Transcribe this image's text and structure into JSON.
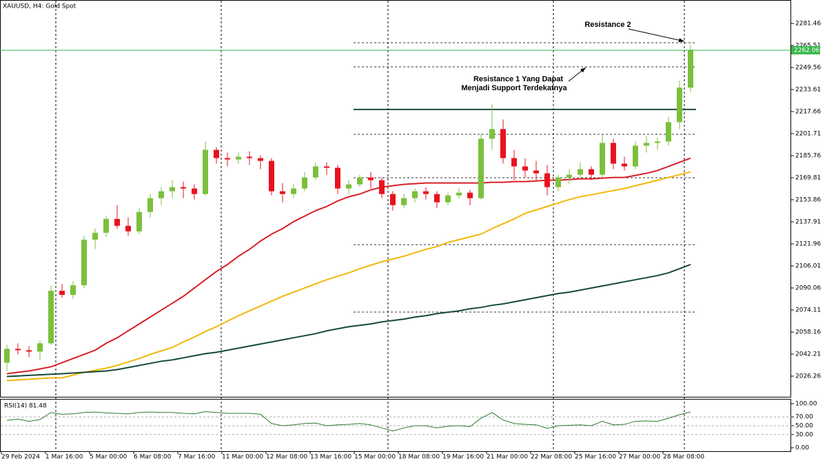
{
  "chart_data": [
    {
      "type": "candlestick",
      "title": "XAUUSD, H4:  Gold Spot",
      "categories": [
        "29 Feb 2024",
        null,
        null,
        null,
        "1 Mar 16:00",
        null,
        null,
        null,
        "5 Mar 00:00",
        null,
        null,
        null,
        "6 Mar 08:00",
        null,
        null,
        null,
        "7 Mar 16:00",
        null,
        null,
        null,
        "11 Mar 00:00",
        null,
        null,
        null,
        "12 Mar 08:00",
        null,
        null,
        null,
        "13 Mar 16:00",
        null,
        null,
        null,
        "15 Mar 00:00",
        null,
        null,
        null,
        "18 Mar 08:00",
        null,
        null,
        null,
        "19 Mar 16:00",
        null,
        null,
        null,
        "21 Mar 00:00",
        null,
        null,
        null,
        "22 Mar 08:00",
        null,
        null,
        null,
        "25 Mar 16:00",
        null,
        null,
        null,
        "27 Mar 00:00",
        null,
        null,
        null,
        "28 Mar 08:00",
        null,
        null
      ],
      "open": [
        2036,
        2046,
        2045,
        2044,
        2050,
        2088,
        2085,
        2092,
        2125,
        2130,
        2140,
        2135,
        2131,
        2145,
        2155,
        2160,
        2163,
        2162,
        2158,
        2190,
        2184,
        2183,
        2185,
        2184,
        2182,
        2160,
        2158,
        2162,
        2170,
        2178,
        2177,
        2162,
        2165,
        2170,
        2168,
        2158,
        2150,
        2155,
        2160,
        2158,
        2152,
        2157,
        2159,
        2155,
        2198,
        2205,
        2184,
        2178,
        2175,
        2173,
        2163,
        2170,
        2172,
        2176,
        2172,
        2195,
        2180,
        2178,
        2193,
        2195,
        2196,
        2210,
        2235
      ],
      "high": [
        2049,
        2050,
        2048,
        2052,
        2092,
        2093,
        2095,
        2128,
        2133,
        2142,
        2150,
        2141,
        2148,
        2158,
        2163,
        2168,
        2167,
        2165,
        2196,
        2192,
        2188,
        2188,
        2189,
        2186,
        2184,
        2166,
        2165,
        2174,
        2181,
        2181,
        2179,
        2168,
        2172,
        2174,
        2170,
        2160,
        2158,
        2162,
        2163,
        2160,
        2159,
        2162,
        2161,
        2202,
        2223,
        2212,
        2190,
        2184,
        2182,
        2179,
        2172,
        2176,
        2181,
        2178,
        2201,
        2198,
        2185,
        2196,
        2200,
        2199,
        2214,
        2240,
        2266
      ],
      "low": [
        2030,
        2042,
        2040,
        2038,
        2049,
        2083,
        2082,
        2090,
        2118,
        2127,
        2133,
        2128,
        2129,
        2141,
        2150,
        2155,
        2155,
        2154,
        2157,
        2180,
        2178,
        2180,
        2179,
        2176,
        2157,
        2152,
        2155,
        2160,
        2168,
        2172,
        2158,
        2158,
        2163,
        2162,
        2155,
        2146,
        2148,
        2152,
        2154,
        2148,
        2150,
        2155,
        2150,
        2154,
        2190,
        2180,
        2168,
        2170,
        2168,
        2157,
        2160,
        2165,
        2170,
        2168,
        2170,
        2176,
        2175,
        2176,
        2188,
        2190,
        2193,
        2205,
        2232
      ],
      "close": [
        2046,
        2045,
        2044,
        2050,
        2088,
        2085,
        2092,
        2125,
        2130,
        2140,
        2135,
        2131,
        2145,
        2155,
        2160,
        2163,
        2162,
        2158,
        2190,
        2184,
        2183,
        2185,
        2184,
        2182,
        2160,
        2158,
        2162,
        2170,
        2178,
        2177,
        2162,
        2165,
        2170,
        2168,
        2158,
        2150,
        2155,
        2160,
        2158,
        2152,
        2157,
        2159,
        2155,
        2198,
        2205,
        2184,
        2178,
        2175,
        2173,
        2163,
        2170,
        2172,
        2176,
        2172,
        2195,
        2180,
        2178,
        2193,
        2195,
        2196,
        2210,
        2235,
        2262.06
      ],
      "up_color": "#7cbf3c",
      "down_color": "#e8121f",
      "lines": [
        {
          "color": "#d91e26",
          "values": [
            2028,
            2029,
            2030,
            2031.5,
            2033,
            2036,
            2039,
            2042,
            2045,
            2050,
            2054,
            2059,
            2064,
            2069,
            2074,
            2079,
            2084,
            2090,
            2096,
            2102,
            2107,
            2113,
            2118,
            2124,
            2129,
            2133,
            2138,
            2142,
            2146,
            2149,
            2153,
            2156,
            2158,
            2161,
            2163,
            2164,
            2165,
            2165.5,
            2166,
            2166,
            2166,
            2166,
            2166,
            2166,
            2166.5,
            2166.5,
            2167,
            2167,
            2167.5,
            2168,
            2168,
            2168.5,
            2169,
            2169,
            2169.5,
            2170,
            2170,
            2171.5,
            2173,
            2175,
            2178,
            2181,
            2184
          ]
        },
        {
          "color": "#f2b705",
          "values": [
            2023,
            2023.5,
            2024,
            2024.5,
            2025,
            2025,
            2027,
            2029,
            2030.5,
            2032,
            2034,
            2036.5,
            2039,
            2042,
            2044.5,
            2047,
            2051,
            2054.5,
            2058.5,
            2062,
            2066,
            2070,
            2073.5,
            2077,
            2080.5,
            2084,
            2087,
            2090,
            2093,
            2096,
            2098.5,
            2101,
            2104,
            2106.5,
            2109,
            2111,
            2113,
            2115.5,
            2118,
            2120,
            2123,
            2125,
            2127,
            2129,
            2133,
            2136.5,
            2140,
            2144,
            2146.5,
            2149,
            2151.5,
            2154,
            2156,
            2157.5,
            2159,
            2160.5,
            2162,
            2164,
            2166,
            2168,
            2170,
            2172,
            2174
          ]
        },
        {
          "color": "#14473a",
          "values": [
            2026,
            2026.4,
            2026.8,
            2027.2,
            2027.6,
            2028,
            2028.5,
            2029,
            2029.5,
            2030,
            2031,
            2032.5,
            2034,
            2035.5,
            2037,
            2038,
            2039.5,
            2041,
            2042.5,
            2043.5,
            2045,
            2046.5,
            2048,
            2049.5,
            2051,
            2052.5,
            2054,
            2055.5,
            2057,
            2059,
            2060.5,
            2062,
            2063,
            2064,
            2065.5,
            2066.5,
            2067.5,
            2069,
            2070,
            2071.5,
            2072.5,
            2073.5,
            2075,
            2076,
            2077.5,
            2078.5,
            2080,
            2081.5,
            2083,
            2084.5,
            2086,
            2087,
            2088.5,
            2090,
            2091.5,
            2093,
            2094.5,
            2096,
            2097.5,
            2099,
            2101,
            2104,
            2107
          ]
        }
      ],
      "levels": [
        {
          "value": 2267.5,
          "style": "dotted",
          "color": "#333333"
        },
        {
          "value": 2250.06,
          "style": "dotted",
          "color": "#333333"
        },
        {
          "value": 2219.2,
          "style": "solid",
          "color": "#1d4a40"
        },
        {
          "value": 2201.2,
          "style": "dotted",
          "color": "#333333"
        },
        {
          "value": 2169.8,
          "style": "dotted",
          "color": "#333333"
        },
        {
          "value": 2121.4,
          "style": "dotted",
          "color": "#333333"
        },
        {
          "value": 2072.6,
          "style": "dotted",
          "color": "#333333"
        }
      ],
      "last_price": 2262.06,
      "last_price_color": "#35b84a",
      "annotations": [
        "Resistance 2",
        "Resistance 1 Yang Dapat",
        "Menjadi Support Terdekatnya"
      ],
      "ylim": [
        2010.8,
        2298.4
      ],
      "yticks": [
        2281.46,
        2265.51,
        2249.56,
        2233.61,
        2217.66,
        2201.71,
        2185.76,
        2169.81,
        2153.86,
        2137.91,
        2121.96,
        2106.01,
        2090.06,
        2074.11,
        2058.16,
        2042.21,
        2026.26
      ]
    },
    {
      "type": "line",
      "title": "RSI(14) 81.48",
      "color": "#2b7a2b",
      "values": [
        62,
        65,
        60,
        64,
        80,
        76,
        77,
        80,
        81,
        79,
        78,
        77,
        80,
        81,
        80,
        80,
        78,
        77,
        82,
        80,
        78,
        78,
        78,
        76,
        55,
        50,
        52,
        55,
        56,
        50,
        52,
        53,
        55,
        52,
        45,
        38,
        45,
        50,
        50,
        45,
        49,
        50,
        48,
        67,
        80,
        63,
        55,
        53,
        52,
        44,
        50,
        51,
        52,
        50,
        60,
        52,
        53,
        60,
        61,
        60,
        67,
        75,
        81.48
      ],
      "ylim": [
        -9.4,
        110.9
      ],
      "yticks": [
        {
          "value": 100,
          "label": "100.00"
        },
        {
          "value": 70,
          "label": "70.00"
        },
        {
          "value": 50,
          "label": "50.00"
        },
        {
          "value": 30,
          "label": "30.00"
        },
        {
          "value": 0,
          "label": "0.00"
        }
      ],
      "levels": [
        70,
        50,
        30
      ]
    }
  ]
}
